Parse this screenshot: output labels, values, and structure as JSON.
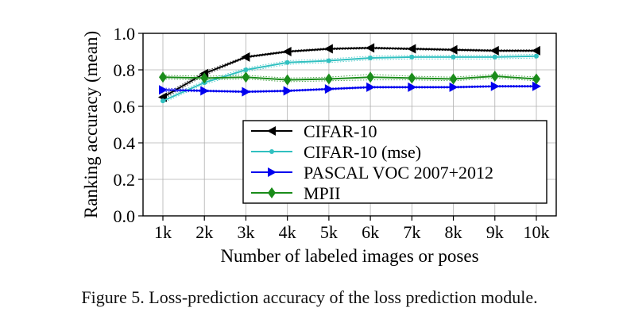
{
  "chart_data": {
    "type": "line",
    "xlabel": "Number of labeled images or poses",
    "ylabel": "Ranking accuracy (mean)",
    "categories": [
      "1k",
      "2k",
      "3k",
      "4k",
      "5k",
      "6k",
      "7k",
      "8k",
      "9k",
      "10k"
    ],
    "ylim": [
      0.0,
      1.0
    ],
    "yticks": [
      "0.0",
      "0.2",
      "0.4",
      "0.6",
      "0.8",
      "1.0"
    ],
    "grid": true,
    "legend_position": "lower-right",
    "series": [
      {
        "name": "CIFAR-10",
        "color": "#000000",
        "marker": "triangle-left",
        "values": [
          0.65,
          0.78,
          0.87,
          0.9,
          0.915,
          0.92,
          0.915,
          0.91,
          0.905,
          0.905
        ],
        "upper": [
          0.66,
          0.79,
          0.875,
          0.905,
          0.92,
          0.925,
          0.92,
          0.915,
          0.91,
          0.91
        ],
        "lower": [
          0.64,
          0.77,
          0.865,
          0.895,
          0.91,
          0.915,
          0.91,
          0.905,
          0.9,
          0.9
        ]
      },
      {
        "name": "CIFAR-10 (mse)",
        "color": "#30c0c0",
        "marker": "dot",
        "values": [
          0.63,
          0.73,
          0.8,
          0.84,
          0.85,
          0.865,
          0.87,
          0.87,
          0.87,
          0.875
        ],
        "upper": [
          0.64,
          0.74,
          0.81,
          0.85,
          0.86,
          0.875,
          0.88,
          0.88,
          0.88,
          0.885
        ],
        "lower": [
          0.62,
          0.72,
          0.79,
          0.83,
          0.84,
          0.855,
          0.86,
          0.86,
          0.86,
          0.865
        ]
      },
      {
        "name": "PASCAL VOC 2007+2012",
        "color": "#0000ee",
        "marker": "triangle-right",
        "values": [
          0.69,
          0.685,
          0.68,
          0.685,
          0.695,
          0.705,
          0.705,
          0.705,
          0.71,
          0.71
        ],
        "upper": [
          0.7,
          0.69,
          0.685,
          0.69,
          0.7,
          0.71,
          0.71,
          0.71,
          0.715,
          0.715
        ],
        "lower": [
          0.68,
          0.68,
          0.675,
          0.68,
          0.69,
          0.7,
          0.7,
          0.7,
          0.705,
          0.705
        ]
      },
      {
        "name": "MPII",
        "color": "#1a8c1a",
        "marker": "diamond",
        "values": [
          0.76,
          0.755,
          0.76,
          0.745,
          0.75,
          0.76,
          0.755,
          0.75,
          0.765,
          0.75
        ],
        "upper": [
          0.77,
          0.765,
          0.77,
          0.755,
          0.76,
          0.775,
          0.765,
          0.76,
          0.775,
          0.76
        ],
        "lower": [
          0.75,
          0.745,
          0.75,
          0.735,
          0.74,
          0.745,
          0.745,
          0.74,
          0.755,
          0.74
        ]
      }
    ]
  },
  "caption": "Figure 5. Loss-prediction accuracy of the loss prediction module."
}
